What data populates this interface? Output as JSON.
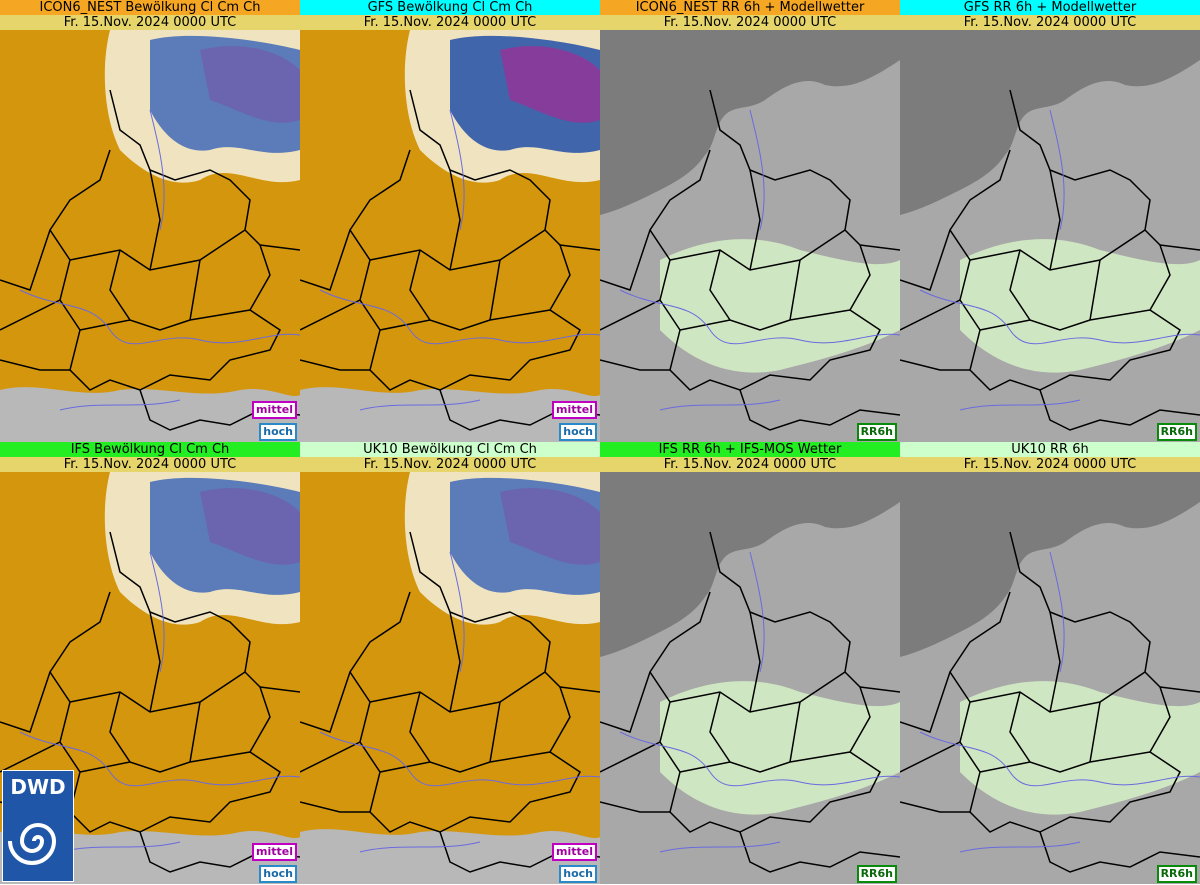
{
  "panels": [
    {
      "title": "ICON6_NEST Bewölkung Cl Cm Ch",
      "date": "Fr. 15.Nov. 2024 0000 UTC",
      "tags": [
        "mittel",
        "hoch"
      ]
    },
    {
      "title": "GFS Bewölkung Cl Cm Ch",
      "date": "Fr. 15.Nov. 2024 0000 UTC",
      "tags": [
        "mittel",
        "hoch"
      ]
    },
    {
      "title": "ICON6_NEST RR 6h + Modellwetter",
      "date": "Fr. 15.Nov. 2024 0000 UTC",
      "tags": [
        "RR6h"
      ]
    },
    {
      "title": "GFS RR 6h + Modellwetter",
      "date": "Fr. 15.Nov. 2024 0000 UTC",
      "tags": [
        "RR6h"
      ]
    },
    {
      "title": "IFS Bewölkung Cl Cm Ch",
      "date": "Fr. 15.Nov. 2024 0000 UTC",
      "tags": [
        "mittel",
        "hoch"
      ]
    },
    {
      "title": "UK10 Bewölkung Cl Cm Ch",
      "date": "Fr. 15.Nov. 2024 0000 UTC",
      "tags": [
        "mittel",
        "hoch"
      ]
    },
    {
      "title": "IFS RR 6h + IFS-MOS Wetter",
      "date": "Fr. 15.Nov. 2024 0000 UTC",
      "tags": [
        "RR6h"
      ]
    },
    {
      "title": "UK10 RR 6h",
      "date": "Fr. 15.Nov. 2024 0000 UTC",
      "tags": [
        "RR6h"
      ]
    }
  ],
  "logo": "DWD"
}
